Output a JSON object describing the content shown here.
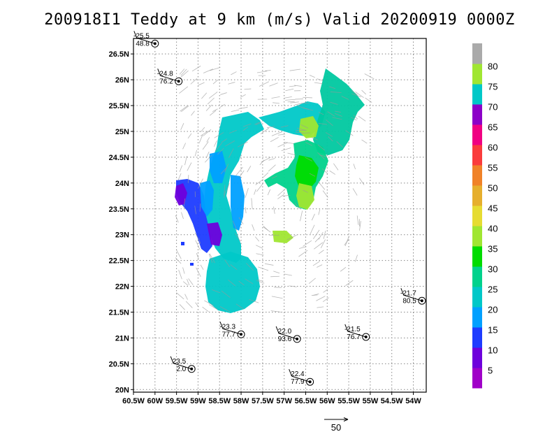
{
  "chart_data": {
    "type": "wind_analysis_map",
    "title": "200918I1 Teddy at 9 km (m/s) Valid 20200919 0000Z",
    "x_ticks": [
      "60.5W",
      "60W",
      "59.5W",
      "59W",
      "58.5W",
      "58W",
      "57.5W",
      "57W",
      "56.5W",
      "56W",
      "55.5W",
      "55W",
      "54.5W",
      "54W"
    ],
    "y_ticks": [
      "20N",
      "20.5N",
      "21N",
      "21.5N",
      "22N",
      "22.5N",
      "23N",
      "23.5N",
      "24N",
      "24.5N",
      "25N",
      "25.5N",
      "26N",
      "26.5N"
    ],
    "xlim_lon_west": [
      60.5,
      53.7
    ],
    "ylim_lat_north": [
      19.95,
      26.8
    ],
    "grid": true,
    "colorbar": {
      "labels": [
        "5",
        "10",
        "15",
        "20",
        "25",
        "30",
        "35",
        "40",
        "45",
        "50",
        "55",
        "60",
        "65",
        "70",
        "75",
        "80"
      ],
      "colors": [
        "#a000c8",
        "#6e00dc",
        "#1e3cff",
        "#00a0ff",
        "#00c8c8",
        "#00d28c",
        "#00dc00",
        "#a0e632",
        "#e6dc32",
        "#e6af2d",
        "#f08228",
        "#fa3c3c",
        "#f00082",
        "#8c00c8",
        "#00c8c8",
        "#a0e632",
        "#aaaaaa"
      ]
    },
    "vector_reference": "50",
    "observations": [
      {
        "temp": "-25.5",
        "height": "48.8",
        "lon": 60.0,
        "lat": 26.7
      },
      {
        "temp": "-24.8",
        "height": "76.2",
        "lon": 59.45,
        "lat": 25.97
      },
      {
        "temp": "-23.3",
        "height": "77.7",
        "lon": 58.0,
        "lat": 21.07
      },
      {
        "temp": "22.0",
        "height": "93.6",
        "lon": 56.7,
        "lat": 20.98
      },
      {
        "temp": "-21.5",
        "height": "76.7",
        "lon": 55.1,
        "lat": 21.02
      },
      {
        "temp": "-21.7",
        "height": "80.5",
        "lon": 53.8,
        "lat": 21.72
      },
      {
        "temp": "23.5",
        "height": "2.0",
        "lon": 59.15,
        "lat": 20.4
      },
      {
        "temp": "22.4",
        "height": "77.9",
        "lon": 56.4,
        "lat": 20.15
      }
    ]
  }
}
